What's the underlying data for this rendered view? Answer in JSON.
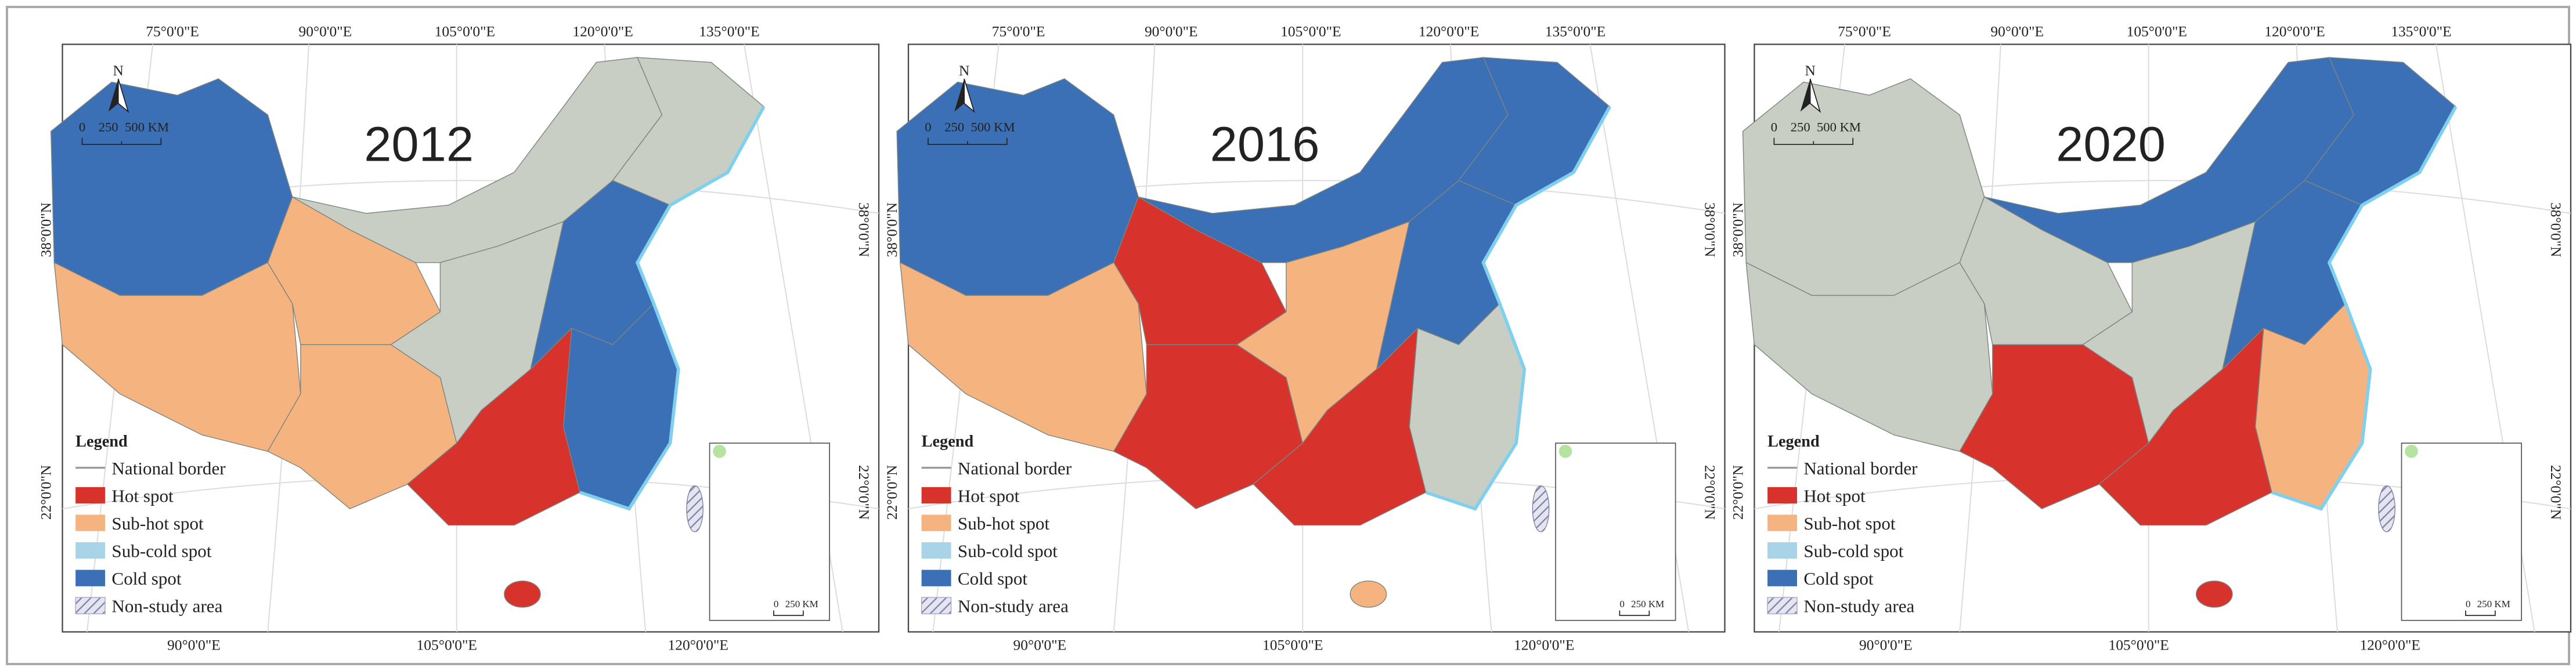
{
  "panels": [
    {
      "year": "2012",
      "top_labels": [
        "75°0'0\"E",
        "90°0'0\"E",
        "105°0'0\"E",
        "120°0'0\"E",
        "135°0'0\"E"
      ],
      "left_labels": [
        "38°0'0\"N",
        "22°0'0\"N"
      ],
      "right_labels": [
        "38°0'0\"N",
        "22°0'0\"N"
      ],
      "bottom_labels": [
        "90°0'0\"E",
        "105°0'0\"E",
        "120°0'0\"E"
      ],
      "north": "N",
      "scale_labels": [
        "0",
        "250",
        "500 KM"
      ],
      "inset_scale": [
        "0",
        "250 KM"
      ]
    },
    {
      "year": "2016",
      "top_labels": [
        "75°0'0\"E",
        "90°0'0\"E",
        "105°0'0\"E",
        "120°0'0\"E",
        "135°0'0\"E"
      ],
      "left_labels": [
        "38°0'0\"N",
        "22°0'0\"N"
      ],
      "right_labels": [
        "38°0'0\"N",
        "22°0'0\"N"
      ],
      "bottom_labels": [
        "90°0'0\"E",
        "105°0'0\"E",
        "120°0'0\"E"
      ],
      "north": "N",
      "scale_labels": [
        "0",
        "250",
        "500 KM"
      ],
      "inset_scale": [
        "0",
        "250 KM"
      ]
    },
    {
      "year": "2020",
      "top_labels": [
        "75°0'0\"E",
        "90°0'0\"E",
        "105°0'0\"E",
        "120°0'0\"E",
        "135°0'0\"E"
      ],
      "left_labels": [
        "38°0'0\"N",
        "22°0'0\"N"
      ],
      "right_labels": [
        "38°0'0\"N",
        "22°0'0\"N"
      ],
      "bottom_labels": [
        "90°0'0\"E",
        "105°0'0\"E",
        "120°0'0\"E"
      ],
      "north": "N",
      "scale_labels": [
        "0",
        "250",
        "500 KM"
      ],
      "inset_scale": [
        "0",
        "250 KM"
      ]
    }
  ],
  "legend": {
    "title": "Legend",
    "items": [
      {
        "label": "National border",
        "color": "#9a9a9a"
      },
      {
        "label": "Hot spot",
        "color": "#d7322b"
      },
      {
        "label": "Sub-hot spot",
        "color": "#f5b47f"
      },
      {
        "label": "Sub-cold spot",
        "color": "#a9d3e6"
      },
      {
        "label": "Cold spot",
        "color": "#3b6fb6"
      },
      {
        "label": "Non-study area",
        "color": "#a7a9c9"
      }
    ]
  }
}
